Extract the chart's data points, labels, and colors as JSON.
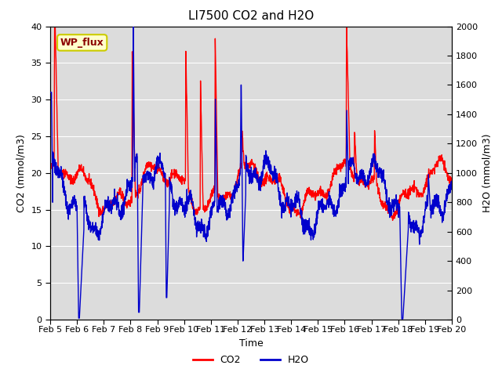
{
  "title": "LI7500 CO2 and H2O",
  "xlabel": "Time",
  "ylabel_left": "CO2 (mmol/m3)",
  "ylabel_right": "H2O (mmol/m3)",
  "ylim_left": [
    0,
    40
  ],
  "ylim_right": [
    0,
    2000
  ],
  "yticks_left": [
    0,
    5,
    10,
    15,
    20,
    25,
    30,
    35,
    40
  ],
  "yticks_right": [
    0,
    200,
    400,
    600,
    800,
    1000,
    1200,
    1400,
    1600,
    1800,
    2000
  ],
  "xtick_labels": [
    "Feb 5",
    "Feb 6",
    "Feb 7",
    "Feb 8",
    "Feb 9",
    "Feb 10",
    "Feb 11",
    "Feb 12",
    "Feb 13",
    "Feb 14",
    "Feb 15",
    "Feb 16",
    "Feb 17",
    "Feb 18",
    "Feb 19",
    "Feb 20"
  ],
  "co2_color": "#FF0000",
  "h2o_color": "#0000CC",
  "background_color": "#DCDCDC",
  "annotation_text": "WP_flux",
  "annotation_bg": "#FFFFCC",
  "annotation_border": "#CCCC00",
  "title_fontsize": 11,
  "axis_label_fontsize": 9,
  "tick_fontsize": 8,
  "legend_fontsize": 9,
  "grid_color": "#FFFFFF",
  "linewidth": 1.0
}
